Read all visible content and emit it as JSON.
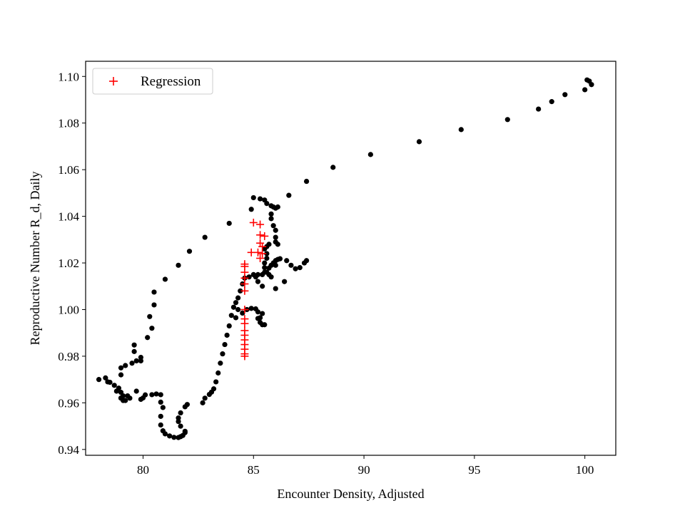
{
  "chart_data": {
    "type": "scatter",
    "title": "",
    "xlabel": "Encounter Density, Adjusted",
    "ylabel": "Reproductive Number R_d, Daily",
    "xlim": [
      77.4,
      101.4
    ],
    "ylim": [
      0.9375,
      1.1065
    ],
    "xticks": [
      80,
      85,
      90,
      95,
      100
    ],
    "yticks": [
      0.94,
      0.96,
      0.98,
      1.0,
      1.02,
      1.04,
      1.06,
      1.08,
      1.1
    ],
    "xtick_labels": [
      "80",
      "85",
      "90",
      "95",
      "100"
    ],
    "ytick_labels": [
      "0.94",
      "0.96",
      "0.98",
      "1.00",
      "1.02",
      "1.04",
      "1.06",
      "1.08",
      "1.10"
    ],
    "grid": false,
    "legend_position": "upper-left",
    "series": [
      {
        "marker": "dot",
        "color": "#000000",
        "points": [
          [
            78.3,
            0.9707
          ],
          [
            78.5,
            0.9688
          ],
          [
            78.7,
            0.9675
          ],
          [
            78.9,
            0.9663
          ],
          [
            79.0,
            0.9645
          ],
          [
            79.1,
            0.963
          ],
          [
            79.0,
            0.9621
          ],
          [
            79.1,
            0.961
          ],
          [
            79.4,
            0.962
          ],
          [
            79.9,
            0.9615
          ],
          [
            80.0,
            0.9621
          ],
          [
            80.1,
            0.9634
          ],
          [
            80.4,
            0.9635
          ],
          [
            80.6,
            0.9638
          ],
          [
            80.8,
            0.9635
          ],
          [
            80.8,
            0.9603
          ],
          [
            80.9,
            0.958
          ],
          [
            80.8,
            0.9542
          ],
          [
            80.8,
            0.9505
          ],
          [
            80.9,
            0.948
          ],
          [
            81.0,
            0.9467
          ],
          [
            81.2,
            0.9458
          ],
          [
            81.4,
            0.9452
          ],
          [
            81.6,
            0.9451
          ],
          [
            81.7,
            0.9455
          ],
          [
            81.8,
            0.946
          ],
          [
            81.9,
            0.9472
          ],
          [
            81.9,
            0.9478
          ],
          [
            81.7,
            0.95
          ],
          [
            81.6,
            0.952
          ],
          [
            81.6,
            0.9535
          ],
          [
            81.7,
            0.9557
          ],
          [
            81.9,
            0.9583
          ],
          [
            82.0,
            0.9593
          ],
          [
            82.7,
            0.96
          ],
          [
            82.8,
            0.962
          ],
          [
            83.0,
            0.9636
          ],
          [
            83.1,
            0.9646
          ],
          [
            83.2,
            0.966
          ],
          [
            83.3,
            0.969
          ],
          [
            83.4,
            0.9728
          ],
          [
            83.5,
            0.977
          ],
          [
            83.6,
            0.981
          ],
          [
            83.7,
            0.985
          ],
          [
            83.8,
            0.989
          ],
          [
            83.9,
            0.993
          ],
          [
            84.0,
            0.9975
          ],
          [
            84.1,
            1.001
          ],
          [
            84.2,
            1.003
          ],
          [
            84.3,
            1.005
          ],
          [
            84.4,
            1.008
          ],
          [
            84.5,
            1.011
          ],
          [
            84.6,
            1.0135
          ],
          [
            84.8,
            1.014
          ],
          [
            85.0,
            1.015
          ],
          [
            85.2,
            1.015
          ],
          [
            85.4,
            1.015
          ],
          [
            85.5,
            1.016
          ],
          [
            85.7,
            1.0178
          ],
          [
            85.8,
            1.019
          ],
          [
            85.9,
            1.02
          ],
          [
            86.0,
            1.021
          ],
          [
            86.1,
            1.0215
          ],
          [
            86.2,
            1.0218
          ],
          [
            86.5,
            1.021
          ],
          [
            86.7,
            1.019
          ],
          [
            86.9,
            1.0175
          ],
          [
            87.1,
            1.018
          ],
          [
            87.3,
            1.02
          ],
          [
            87.4,
            1.021
          ],
          [
            86.6,
            1.049
          ],
          [
            87.4,
            1.055
          ],
          [
            88.6,
            1.061
          ],
          [
            90.3,
            1.0665
          ],
          [
            92.5,
            1.072
          ],
          [
            94.4,
            1.0772
          ],
          [
            96.5,
            1.0815
          ],
          [
            97.9,
            1.086
          ],
          [
            98.5,
            1.0892
          ],
          [
            99.1,
            1.0922
          ],
          [
            100.0,
            1.0943
          ],
          [
            100.1,
            1.0985
          ],
          [
            100.2,
            1.098
          ],
          [
            100.3,
            1.0965
          ],
          [
            78.0,
            0.97
          ],
          [
            78.4,
            0.969
          ],
          [
            78.8,
            0.965
          ],
          [
            79.0,
            0.962
          ],
          [
            79.2,
            0.961
          ],
          [
            79.3,
            0.963
          ],
          [
            79.7,
            0.965
          ],
          [
            79.0,
            0.972
          ],
          [
            79.0,
            0.975
          ],
          [
            79.2,
            0.976
          ],
          [
            79.5,
            0.977
          ],
          [
            79.7,
            0.978
          ],
          [
            79.6,
            0.982
          ],
          [
            79.6,
            0.9848
          ],
          [
            79.9,
            0.9795
          ],
          [
            79.9,
            0.978
          ],
          [
            80.2,
            0.988
          ],
          [
            80.4,
            0.992
          ],
          [
            80.3,
            0.997
          ],
          [
            80.5,
            1.002
          ],
          [
            80.5,
            1.0075
          ],
          [
            81.0,
            1.013
          ],
          [
            81.6,
            1.019
          ],
          [
            82.1,
            1.025
          ],
          [
            82.8,
            1.031
          ],
          [
            83.9,
            1.037
          ],
          [
            84.2,
            0.9965
          ],
          [
            84.3,
            1.0
          ],
          [
            84.5,
            0.9985
          ],
          [
            84.7,
            1.0
          ],
          [
            84.9,
            1.0005
          ],
          [
            85.1,
            1.0003
          ],
          [
            85.2,
            0.999
          ],
          [
            85.3,
            0.9965
          ],
          [
            85.4,
            0.9935
          ],
          [
            85.5,
            0.9935
          ],
          [
            85.3,
            0.9945
          ],
          [
            85.2,
            0.9962
          ],
          [
            85.4,
            0.9983
          ],
          [
            85.1,
            1.014
          ],
          [
            85.2,
            1.012
          ],
          [
            85.4,
            1.01
          ],
          [
            84.9,
            1.043
          ],
          [
            85.0,
            1.048
          ],
          [
            85.3,
            1.0475
          ],
          [
            85.5,
            1.047
          ],
          [
            85.6,
            1.0455
          ],
          [
            85.8,
            1.0445
          ],
          [
            85.9,
            1.044
          ],
          [
            86.1,
            1.044
          ],
          [
            86.0,
            1.0435
          ],
          [
            85.8,
            1.041
          ],
          [
            85.8,
            1.039
          ],
          [
            85.9,
            1.036
          ],
          [
            86.0,
            1.034
          ],
          [
            86.0,
            1.031
          ],
          [
            86.0,
            1.029
          ],
          [
            86.1,
            1.028
          ],
          [
            85.7,
            1.028
          ],
          [
            85.6,
            1.027
          ],
          [
            85.5,
            1.026
          ],
          [
            85.6,
            1.024
          ],
          [
            85.6,
            1.022
          ],
          [
            85.5,
            1.02
          ],
          [
            85.5,
            1.018
          ],
          [
            85.6,
            1.016
          ],
          [
            85.7,
            1.015
          ],
          [
            85.8,
            1.014
          ],
          [
            86.0,
            1.009
          ],
          [
            86.0,
            1.019
          ],
          [
            86.4,
            1.012
          ]
        ]
      },
      {
        "name": "Regression",
        "marker": "plus",
        "color": "#ff0000",
        "points": [
          [
            85.0,
            1.0373
          ],
          [
            85.3,
            1.0365
          ],
          [
            85.3,
            1.032
          ],
          [
            85.5,
            1.0315
          ],
          [
            85.3,
            1.0285
          ],
          [
            85.4,
            1.027
          ],
          [
            85.4,
            1.024
          ],
          [
            85.2,
            1.0245
          ],
          [
            84.9,
            1.0245
          ],
          [
            85.3,
            1.022
          ],
          [
            84.6,
            1.0195
          ],
          [
            84.6,
            1.0185
          ],
          [
            84.6,
            1.016
          ],
          [
            84.6,
            1.0135
          ],
          [
            84.6,
            1.011
          ],
          [
            84.6,
            1.008
          ],
          [
            84.6,
            1.0
          ],
          [
            84.6,
            0.996
          ],
          [
            84.6,
            0.994
          ],
          [
            84.6,
            0.991
          ],
          [
            84.6,
            0.989
          ],
          [
            84.6,
            0.987
          ],
          [
            84.6,
            0.985
          ],
          [
            84.6,
            0.983
          ],
          [
            84.6,
            0.981
          ],
          [
            84.6,
            0.98
          ]
        ]
      }
    ]
  },
  "legend": {
    "entries": [
      {
        "label": "Regression",
        "marker": "plus",
        "color": "#ff0000"
      }
    ]
  }
}
